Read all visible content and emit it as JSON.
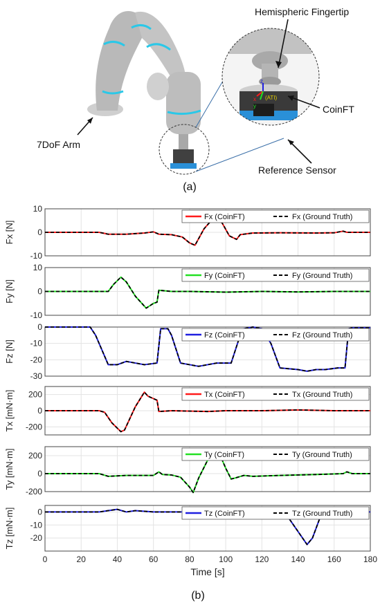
{
  "panel_a": {
    "label": "(a)",
    "annotations": {
      "fingertip": "Hemispheric Fingertip",
      "coinft": "CoinFT",
      "arm": "7DoF Arm",
      "reference": "Reference Sensor",
      "axis_x": "x",
      "axis_y": "y",
      "axis_z": "z",
      "ati": "(ATI)"
    }
  },
  "panel_b_label": "(b)",
  "colors": {
    "red": "#ff1a1a",
    "green": "#22e022",
    "blue": "#1f1fe0",
    "truth": "#000000",
    "grid": "#e3e3e3"
  },
  "chart_data": [
    {
      "type": "line",
      "ylabel": "Fx [N]",
      "xlim": [
        0,
        180
      ],
      "ylim": [
        -10,
        10
      ],
      "yticks": [
        -10,
        0,
        10
      ],
      "xticks": [
        0,
        20,
        40,
        60,
        80,
        100,
        120,
        140,
        160,
        180
      ],
      "color": "red",
      "series": [
        {
          "name": "Fx (CoinFT)",
          "style": "solid"
        },
        {
          "name": "Fx (Ground Truth)",
          "style": "dashed"
        }
      ],
      "x": [
        0,
        30,
        35,
        45,
        55,
        60,
        63,
        70,
        76,
        80,
        83,
        88,
        92,
        95,
        98,
        102,
        106,
        108,
        115,
        130,
        150,
        160,
        165,
        167,
        170,
        180
      ],
      "y": [
        0,
        0,
        -0.8,
        -0.8,
        -0.3,
        0.2,
        -0.8,
        -1,
        -2,
        -4.5,
        -5.5,
        1.5,
        5,
        5.5,
        4,
        -1.5,
        -3,
        -1,
        -0.3,
        -0.2,
        -0.3,
        -0.2,
        0.5,
        0,
        0,
        0
      ]
    },
    {
      "type": "line",
      "ylabel": "Fy [N]",
      "xlim": [
        0,
        180
      ],
      "ylim": [
        -10,
        10
      ],
      "yticks": [
        -10,
        0,
        10
      ],
      "xticks": [
        0,
        20,
        40,
        60,
        80,
        100,
        120,
        140,
        160,
        180
      ],
      "color": "green",
      "series": [
        {
          "name": "Fy (CoinFT)",
          "style": "solid"
        },
        {
          "name": "Fy (Ground Truth)",
          "style": "dashed"
        }
      ],
      "x": [
        0,
        30,
        35,
        38,
        42,
        45,
        50,
        56,
        58,
        60,
        62,
        63,
        70,
        80,
        100,
        120,
        140,
        160,
        180
      ],
      "y": [
        0,
        0,
        0,
        3,
        6,
        4,
        -2,
        -7,
        -6,
        -5,
        -4.5,
        0.5,
        0,
        0,
        -0.3,
        0,
        -0.2,
        0,
        0
      ]
    },
    {
      "type": "line",
      "ylabel": "Fz [N]",
      "xlim": [
        0,
        180
      ],
      "ylim": [
        -30,
        0
      ],
      "yticks": [
        -30,
        -20,
        -10,
        0
      ],
      "xticks": [
        0,
        20,
        40,
        60,
        80,
        100,
        120,
        140,
        160,
        180
      ],
      "color": "blue",
      "series": [
        {
          "name": "Fz (CoinFT)",
          "style": "solid"
        },
        {
          "name": "Fz (Ground Truth)",
          "style": "dashed"
        }
      ],
      "x": [
        0,
        25,
        28,
        35,
        40,
        45,
        55,
        62,
        64,
        68,
        70,
        75,
        85,
        95,
        100,
        103,
        108,
        110,
        115,
        120,
        125,
        130,
        140,
        145,
        150,
        155,
        162,
        166,
        168,
        170,
        180
      ],
      "y": [
        0,
        0,
        -5,
        -23,
        -23,
        -21,
        -23,
        -22,
        -1,
        -1,
        -5,
        -22,
        -24,
        -22,
        -22,
        -22,
        -5,
        -1,
        0,
        -1,
        -10,
        -25,
        -26,
        -27,
        -26,
        -26,
        -25,
        -25,
        -1,
        -0.5,
        -0.5
      ]
    },
    {
      "type": "line",
      "ylabel": "Tx [mN·m]",
      "xlim": [
        0,
        180
      ],
      "ylim": [
        -300,
        300
      ],
      "yticks": [
        -200,
        0,
        200
      ],
      "xticks": [
        0,
        20,
        40,
        60,
        80,
        100,
        120,
        140,
        160,
        180
      ],
      "color": "red",
      "series": [
        {
          "name": "Tx (CoinFT)",
          "style": "solid"
        },
        {
          "name": "Tx (Ground Truth)",
          "style": "dashed"
        }
      ],
      "x": [
        0,
        30,
        33,
        37,
        42,
        44,
        50,
        55,
        57,
        60,
        62,
        63,
        70,
        90,
        100,
        120,
        140,
        160,
        180
      ],
      "y": [
        0,
        0,
        -20,
        -150,
        -260,
        -240,
        50,
        230,
        180,
        150,
        130,
        -10,
        0,
        -10,
        0,
        0,
        10,
        0,
        0
      ]
    },
    {
      "type": "line",
      "ylabel": "Ty [mN·m]",
      "xlim": [
        0,
        180
      ],
      "ylim": [
        -200,
        300
      ],
      "yticks": [
        -200,
        0,
        200
      ],
      "xticks": [
        0,
        20,
        40,
        60,
        80,
        100,
        120,
        140,
        160,
        180
      ],
      "color": "green",
      "series": [
        {
          "name": "Ty (CoinFT)",
          "style": "solid"
        },
        {
          "name": "Ty (Ground Truth)",
          "style": "dashed"
        }
      ],
      "x": [
        0,
        30,
        35,
        45,
        60,
        63,
        65,
        70,
        75,
        80,
        82,
        85,
        90,
        94,
        97,
        100,
        103,
        105,
        110,
        115,
        130,
        150,
        165,
        167,
        170,
        180
      ],
      "y": [
        0,
        0,
        -30,
        -20,
        -20,
        20,
        -10,
        -15,
        -40,
        -150,
        -210,
        -50,
        150,
        255,
        200,
        60,
        -60,
        -50,
        -20,
        -30,
        -20,
        -10,
        0,
        20,
        0,
        0
      ]
    },
    {
      "type": "line",
      "ylabel": "Tz [mN·m]",
      "xlim": [
        0,
        180
      ],
      "ylim": [
        -30,
        5
      ],
      "yticks": [
        -20,
        -10,
        0
      ],
      "xticks": [
        0,
        20,
        40,
        60,
        80,
        100,
        120,
        140,
        160,
        180
      ],
      "xlabel": "Time [s]",
      "color": "blue",
      "series": [
        {
          "name": "Tz (CoinFT)",
          "style": "solid"
        },
        {
          "name": "Tz (Ground Truth)",
          "style": "dashed"
        }
      ],
      "x": [
        0,
        30,
        35,
        40,
        45,
        50,
        60,
        70,
        80,
        90,
        93,
        96,
        100,
        120,
        130,
        135,
        140,
        145,
        148,
        152,
        158,
        160,
        165,
        170,
        180
      ],
      "y": [
        0,
        0,
        1,
        2,
        0,
        1,
        0,
        0,
        0,
        0,
        3,
        2,
        0,
        0,
        -1,
        -5,
        -15,
        -25,
        -20,
        -5,
        3,
        3,
        2,
        0,
        0
      ]
    }
  ]
}
